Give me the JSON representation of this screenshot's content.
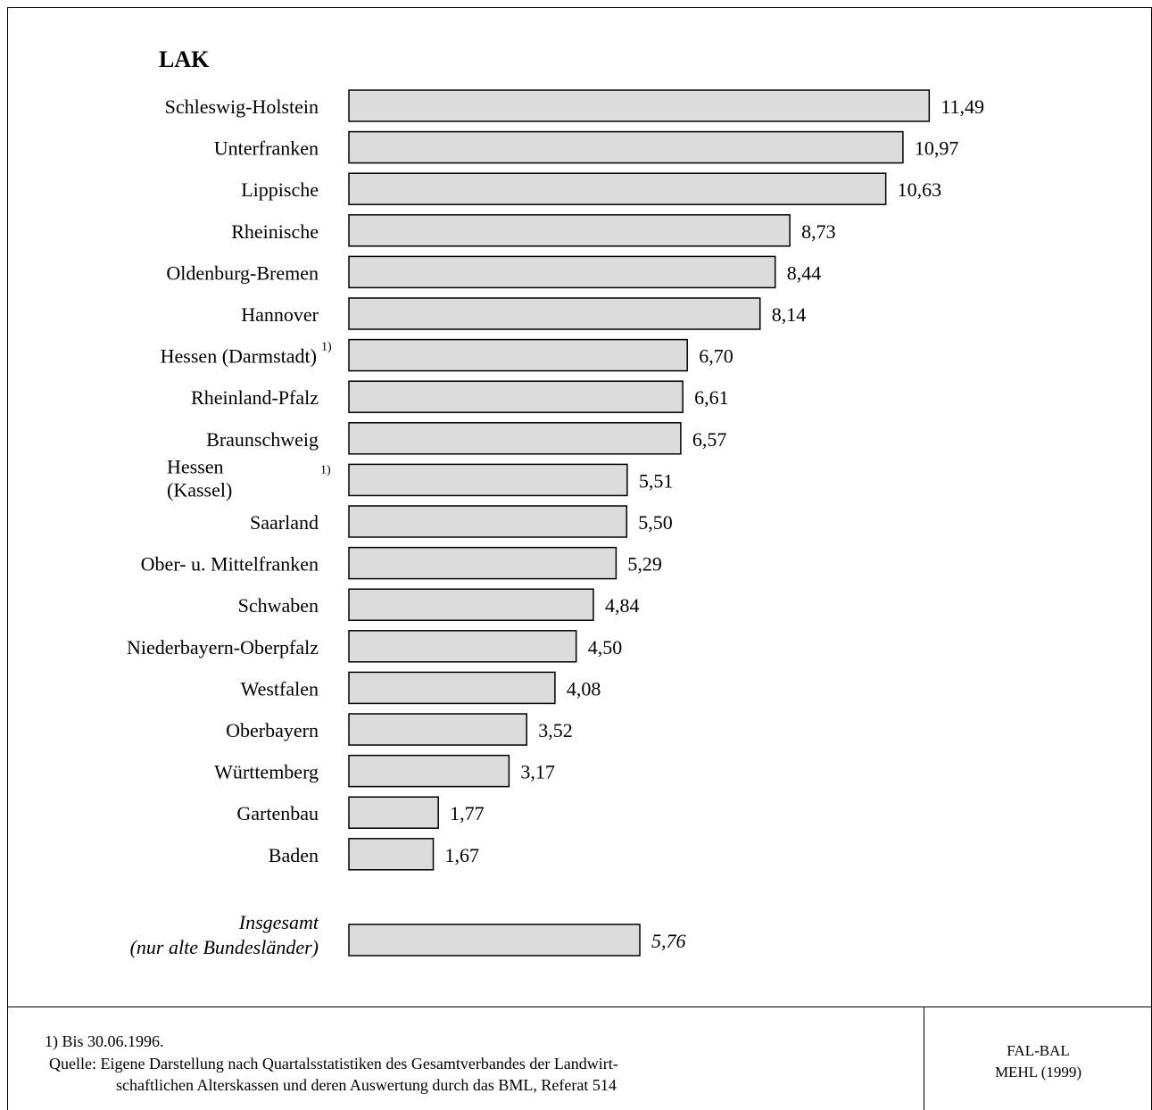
{
  "chart_data": {
    "type": "bar",
    "orientation": "horizontal",
    "title": "LAK",
    "categories": [
      "Schleswig-Holstein",
      "Unterfranken",
      "Lippische",
      "Rheinische",
      "Oldenburg-Bremen",
      "Hannover",
      "Hessen (Darmstadt)",
      "Rheinland-Pfalz",
      "Braunschweig",
      "Hessen (Kassel)",
      "Saarland",
      "Ober- u. Mittelfranken",
      "Schwaben",
      "Niederbayern-Oberpfalz",
      "Westfalen",
      "Oberbayern",
      "Württemberg",
      "Gartenbau",
      "Baden"
    ],
    "values": [
      11.49,
      10.97,
      10.63,
      8.73,
      8.44,
      8.14,
      6.7,
      6.61,
      6.57,
      5.51,
      5.5,
      5.29,
      4.84,
      4.5,
      4.08,
      3.52,
      3.17,
      1.77,
      1.67
    ],
    "value_labels": [
      "11,49",
      "10,97",
      "10,63",
      "8,73",
      "8,44",
      "8,14",
      "6,70",
      "6,61",
      "6,57",
      "5,51",
      "5,50",
      "5,29",
      "4,84",
      "4,50",
      "4,08",
      "3,52",
      "3,17",
      "1,77",
      "1,67"
    ],
    "footnote_marks": [
      "",
      "",
      "",
      "",
      "",
      "",
      "1)",
      "",
      "",
      "1)",
      "",
      "",
      "",
      "",
      "",
      "",
      "",
      "",
      ""
    ],
    "total": {
      "label_line1": "Insgesamt",
      "label_line2": "(nur alte Bundesländer)",
      "value": 5.76,
      "value_label": "5,76"
    },
    "bar_fill": "#dcdcdc",
    "bar_stroke": "#000000"
  },
  "footer": {
    "footnote": "1) Bis 30.06.1996.",
    "source_line1": "Quelle: Eigene Darstellung nach Quartalsstatistiken des Gesamtverbandes der Landwirt-",
    "source_line2": "schaftlichen Alterskassen und deren Auswertung durch das BML, Referat 514",
    "credit_line1": "FAL-BAL",
    "credit_line2": "MEHL (1999)"
  }
}
